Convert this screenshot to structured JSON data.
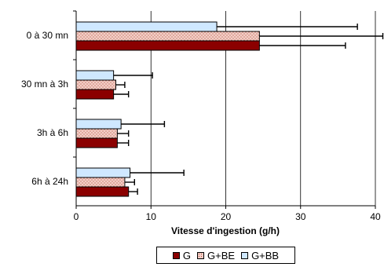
{
  "chart_data": {
    "type": "bar",
    "orientation": "horizontal",
    "categories": [
      "0 à 30 mn",
      "30 mn à 3h",
      "3h à 6h",
      "6h à 24h"
    ],
    "xlabel": "Vitesse d'ingestion (g/h)",
    "ylabel": "",
    "xlim": [
      0,
      40
    ],
    "xticks": [
      0,
      10,
      20,
      30,
      40
    ],
    "grid": true,
    "legend_position": "bottom",
    "series": [
      {
        "name": "G",
        "color": "#8b0000",
        "pattern": "solid",
        "values": [
          24.5,
          5.0,
          5.5,
          7.0
        ],
        "error_plus": [
          11.5,
          2.0,
          1.5,
          1.2
        ]
      },
      {
        "name": "G+BE",
        "color": "#f2c9c0",
        "pattern": "dotted",
        "values": [
          24.5,
          5.3,
          5.5,
          6.5
        ],
        "error_plus": [
          16.5,
          1.2,
          1.5,
          1.3
        ]
      },
      {
        "name": "G+BB",
        "color": "#cfe8ff",
        "pattern": "light",
        "values": [
          18.8,
          5.0,
          6.0,
          7.2
        ],
        "error_plus": [
          18.8,
          5.2,
          5.8,
          7.2
        ]
      }
    ]
  }
}
